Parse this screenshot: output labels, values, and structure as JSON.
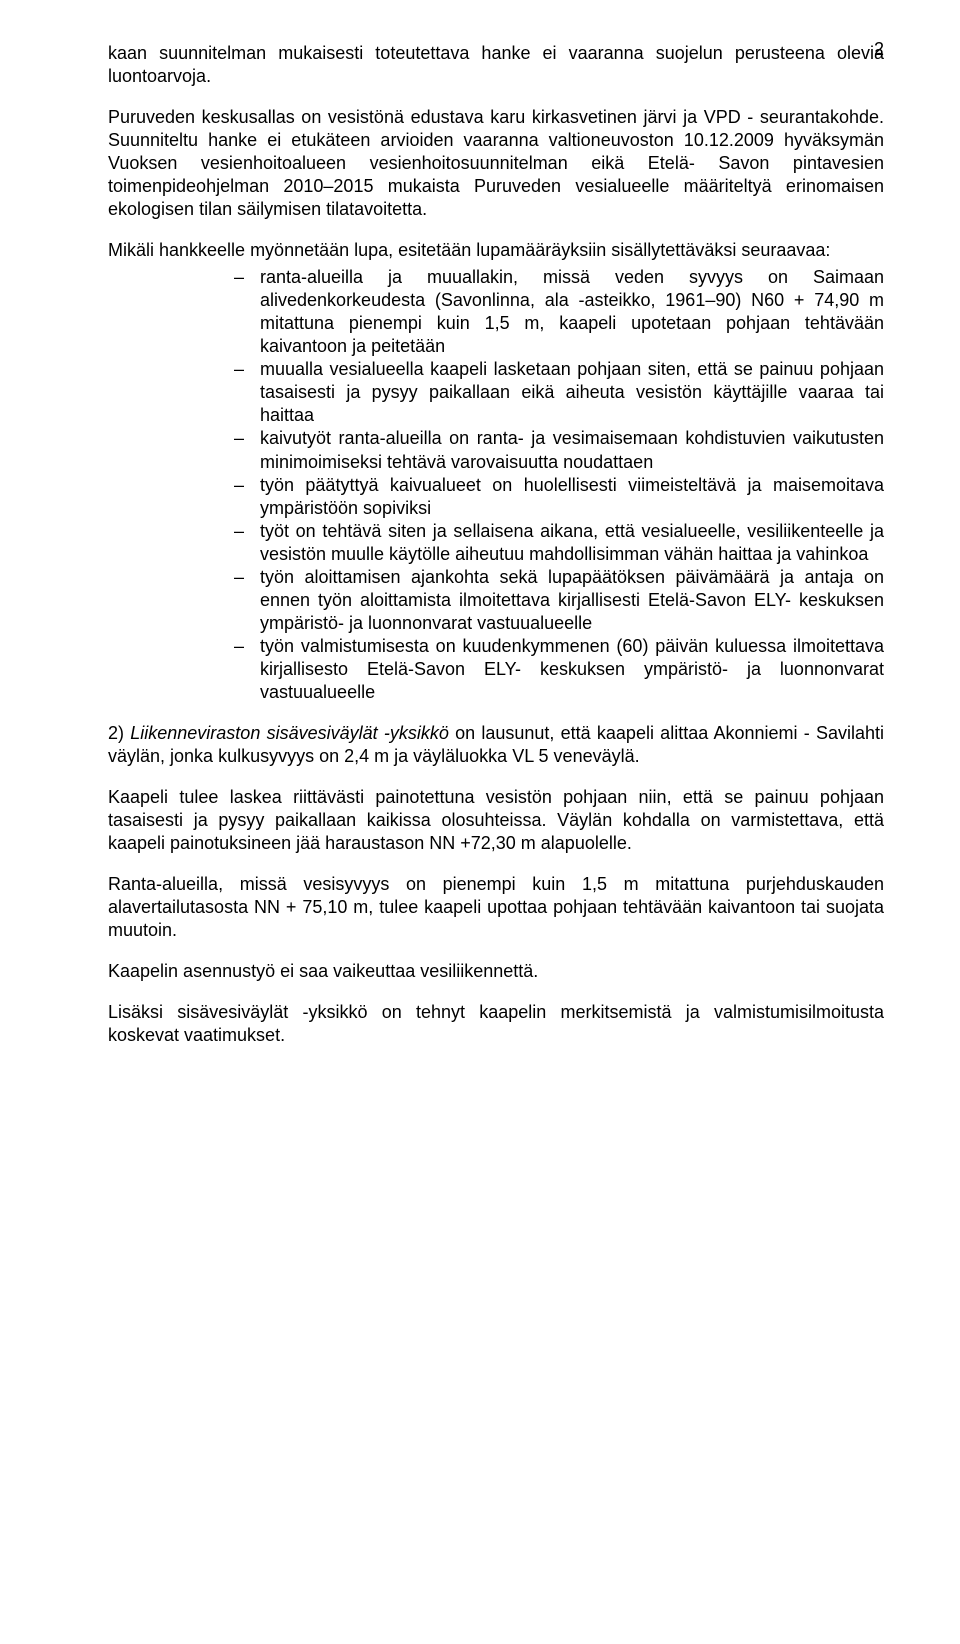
{
  "page_number": "2",
  "p1": "kaan suunnitelman mukaisesti toteutettava hanke ei vaaranna suojelun perusteena olevia luontoarvoja.",
  "p2": "Puruveden keskusallas on vesistönä edustava karu kirkasvetinen järvi ja VPD - seurantakohde. Suunniteltu hanke ei etukäteen arvioiden vaaranna valtioneuvoston 10.12.2009 hyväksymän Vuoksen vesienhoitoalueen vesienhoitosuunnitelman eikä Etelä- Savon pintavesien toimenpideohjelman 2010–2015  mukaista Puruveden vesialueelle määriteltyä erinomaisen ekologisen tilan säilymisen tilatavoitetta.",
  "p3_intro": "Mikäli hankkeelle myönnetään lupa, esitetään lupamääräyksiin sisällytettäväksi seuraavaa:",
  "bullets": [
    "ranta-alueilla ja muuallakin, missä veden syvyys on Saimaan alivedenkorkeudesta (Savonlinna, ala -asteikko, 1961–90) N60 + 74,90 m mitattuna pienempi kuin 1,5 m, kaapeli upotetaan pohjaan tehtävään kaivantoon ja peitetään",
    "muualla vesialueella kaapeli lasketaan pohjaan siten, että se painuu pohjaan tasaisesti ja pysyy paikallaan eikä aiheuta vesistön käyttäjille vaaraa tai haittaa",
    "kaivutyöt ranta-alueilla on ranta- ja vesimaisemaan kohdistuvien vaikutusten minimoimiseksi tehtävä varovaisuutta noudattaen",
    "työn päätyttyä kaivualueet on huolellisesti viimeisteltävä ja maisemoitava ympäristöön sopiviksi",
    "työt on tehtävä siten ja sellaisena aikana, että vesialueelle, vesiliikenteelle ja vesistön muulle käytölle aiheutuu mahdollisimman vähän haittaa ja vahinkoa",
    "työn aloittamisen ajankohta sekä lupapäätöksen päivämäärä ja antaja on ennen työn aloittamista ilmoitettava kirjallisesti Etelä-Savon ELY- keskuksen ympäristö- ja luonnonvarat vastuualueelle",
    "työn valmistumisesta on kuudenkymmenen (60) päivän kuluessa ilmoitettava kirjallisesto Etelä-Savon ELY- keskuksen ympäristö- ja luonnonvarat vastuualueelle"
  ],
  "p4_prefix": "2) ",
  "p4_italic": "Liikenneviraston sisävesiväylät -yksikkö",
  "p4_rest": " on lausunut, että kaapeli alittaa Akonniemi - Savilahti väylän, jonka kulkusyvyys on 2,4 m ja väyläluokka VL 5 veneväylä.",
  "p5": "Kaapeli tulee laskea riittävästi painotettuna vesistön pohjaan niin, että se painuu pohjaan tasaisesti ja pysyy paikallaan kaikissa olosuhteissa. Väylän kohdalla on varmistettava, että kaapeli painotuksineen jää haraustason NN +72,30 m alapuolelle.",
  "p6": "Ranta-alueilla, missä vesisyvyys on pienempi kuin 1,5 m mitattuna purjehduskauden alavertailutasosta NN + 75,10 m, tulee kaapeli upottaa pohjaan tehtävään kaivantoon tai suojata muutoin.",
  "p7": "Kaapelin asennustyö ei saa vaikeuttaa vesiliikennettä.",
  "p8": "Lisäksi sisävesiväylät -yksikkö on tehnyt kaapelin merkitsemistä ja valmistumisilmoitusta koskevat vaatimukset."
}
